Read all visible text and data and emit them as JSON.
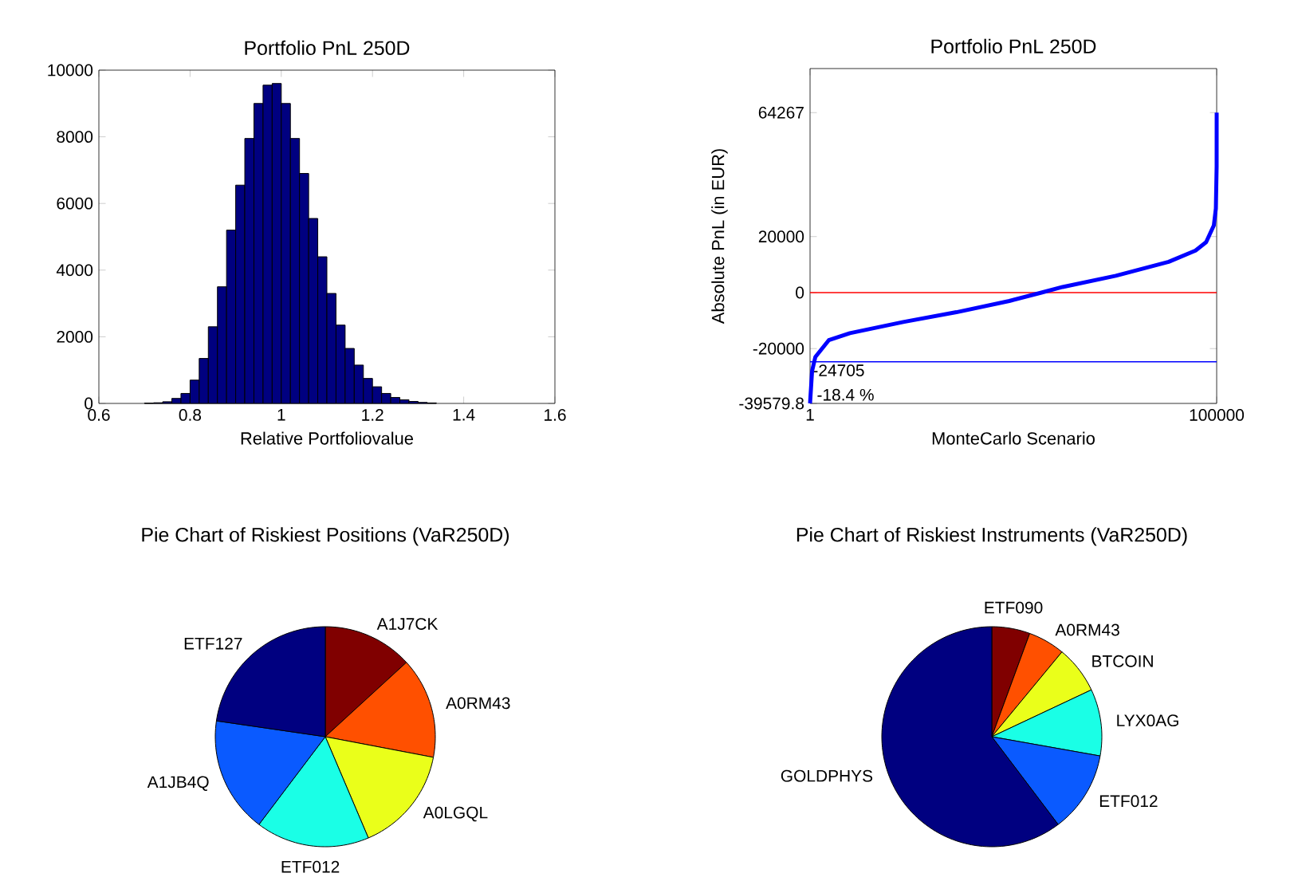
{
  "chart_data": [
    {
      "type": "histogram",
      "title": "Portfolio PnL 250D",
      "xlabel": "Relative Portfoliovalue",
      "color": "#000080",
      "bins": [
        0.7,
        0.72,
        0.74,
        0.76,
        0.78,
        0.8,
        0.82,
        0.84,
        0.86,
        0.88,
        0.9,
        0.92,
        0.94,
        0.96,
        0.98,
        1.0,
        1.02,
        1.04,
        1.06,
        1.08,
        1.1,
        1.12,
        1.14,
        1.16,
        1.18,
        1.2,
        1.22,
        1.24,
        1.26,
        1.28,
        1.3,
        1.32,
        1.34
      ],
      "values": [
        10,
        20,
        50,
        150,
        300,
        700,
        1350,
        2300,
        3500,
        5200,
        6550,
        7950,
        9000,
        9550,
        9600,
        9000,
        7950,
        6900,
        5550,
        4400,
        3300,
        2350,
        1650,
        1150,
        750,
        500,
        300,
        180,
        110,
        60,
        30,
        15
      ],
      "xlim": [
        0.6,
        1.6
      ],
      "ylim": [
        0,
        10000
      ],
      "xticks": [
        0.6,
        0.8,
        1,
        1.2,
        1.4,
        1.6
      ],
      "yticks": [
        0,
        2000,
        4000,
        6000,
        8000,
        10000
      ]
    },
    {
      "type": "line",
      "title": "Portfolio PnL 250D",
      "xlabel": "MonteCarlo Scenario",
      "ylabel": "Absolute PnL (in EUR)",
      "series": [
        {
          "color": "#0000ff",
          "x": [
            1,
            500,
            1300,
            4600,
            9800,
            22900,
            36000,
            49000,
            56900,
            62100,
            75200,
            88200,
            94800,
            97400,
            99300,
            99800,
            99990,
            100000
          ],
          "values": [
            -39579.8,
            -28000,
            -23000,
            -17000,
            -14500,
            -10500,
            -7000,
            -3000,
            0,
            2000,
            6000,
            11000,
            15000,
            18000,
            24000,
            30000,
            45000,
            64267
          ]
        }
      ],
      "xlim": [
        1,
        100000
      ],
      "ylim": [
        -39579.8,
        80000
      ],
      "xticks": [
        1,
        100000
      ],
      "yticks": [
        -39579.8,
        -20000,
        0,
        20000,
        64267
      ],
      "ref_lines": [
        {
          "axis": "y",
          "value": 0,
          "color": "#ff0000"
        },
        {
          "axis": "y",
          "value": -24705,
          "label": "-24705",
          "color": "#0000ff"
        }
      ],
      "annotations": [
        "-18.4 %"
      ]
    },
    {
      "type": "pie",
      "title": "Pie Chart of Riskiest Positions (VaR250D)",
      "categories": [
        "A1J7CK",
        "A0RM43",
        "A0LGQL",
        "ETF012",
        "A1JB4Q",
        "ETF127"
      ],
      "values": [
        13.2,
        14.8,
        15.6,
        16.7,
        17.0,
        22.7
      ],
      "colors": [
        "#800000",
        "#ff5000",
        "#eaff1a",
        "#1affe6",
        "#0a5aff",
        "#000080"
      ]
    },
    {
      "type": "pie",
      "title": "Pie Chart of Riskiest Instruments (VaR250D)",
      "categories": [
        "ETF090",
        "A0RM43",
        "BTCOIN",
        "LYX0AG",
        "ETF012",
        "GOLDPHYS"
      ],
      "values": [
        5.6,
        5.4,
        7.0,
        9.8,
        11.9,
        60.3
      ],
      "colors": [
        "#800000",
        "#ff5000",
        "#eaff1a",
        "#1affe6",
        "#0a5aff",
        "#000080"
      ]
    }
  ]
}
